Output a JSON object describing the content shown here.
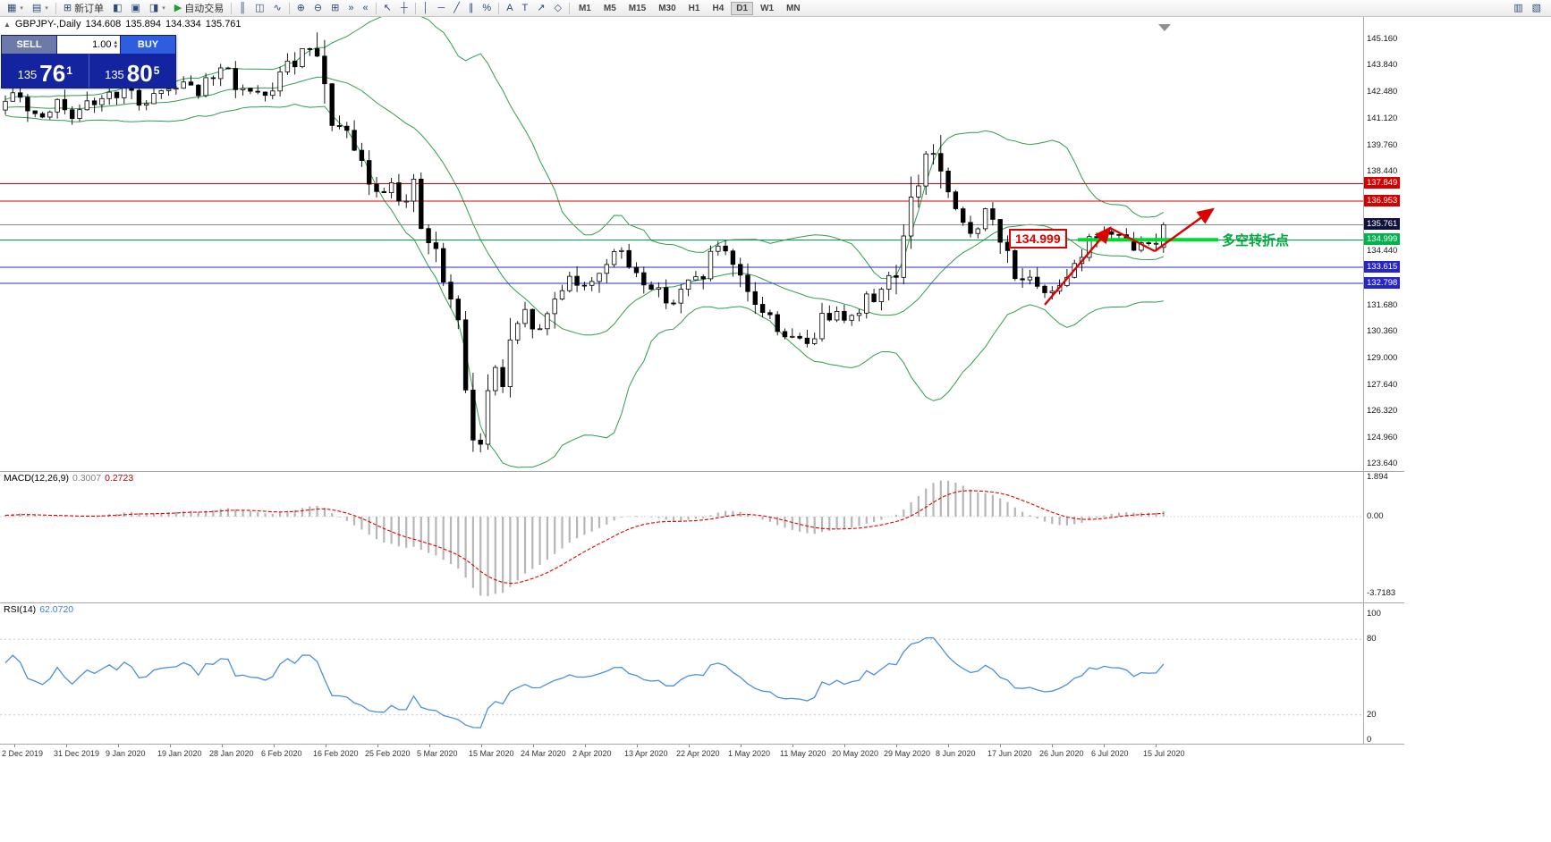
{
  "toolbar": {
    "groups": [
      {
        "items": [
          {
            "name": "new-chart-icon",
            "glyph": "▦",
            "caret": true
          },
          {
            "name": "profiles-icon",
            "glyph": "▤",
            "caret": true
          }
        ]
      },
      {
        "items": [
          {
            "name": "new-order-button",
            "glyph": "⊞",
            "label": "新订单"
          },
          {
            "name": "market-watch-icon",
            "glyph": "◧"
          },
          {
            "name": "data-window-icon",
            "glyph": "▣"
          },
          {
            "name": "navigator-icon",
            "glyph": "◨",
            "caret": true
          },
          {
            "name": "autotrading-button",
            "glyph": "▶",
            "label": "自动交易",
            "glyph_color": "#1f9d2c"
          }
        ]
      },
      {
        "items": [
          {
            "name": "bar-chart-icon",
            "glyph": "║"
          },
          {
            "name": "candlestick-chart-icon",
            "glyph": "◫"
          },
          {
            "name": "line-chart-icon",
            "glyph": "∿"
          }
        ]
      },
      {
        "items": [
          {
            "name": "zoom-in-icon",
            "glyph": "⊕"
          },
          {
            "name": "zoom-out-icon",
            "glyph": "⊖"
          },
          {
            "name": "tile-windows-icon",
            "glyph": "⊞"
          },
          {
            "name": "auto-scroll-icon",
            "glyph": "»"
          },
          {
            "name": "chart-shift-icon",
            "glyph": "«"
          }
        ]
      },
      {
        "items": [
          {
            "name": "cursor-icon",
            "glyph": "↖"
          },
          {
            "name": "crosshair-icon",
            "glyph": "┼"
          }
        ]
      },
      {
        "items": [
          {
            "name": "vertical-line-icon",
            "glyph": "│"
          },
          {
            "name": "horizontal-line-icon",
            "glyph": "─"
          },
          {
            "name": "trendline-icon",
            "glyph": "╱"
          },
          {
            "name": "equidistant-channel-icon",
            "glyph": "∥"
          },
          {
            "name": "fibonacci-icon",
            "glyph": "%"
          }
        ]
      },
      {
        "items": [
          {
            "name": "text-icon",
            "glyph": "A"
          },
          {
            "name": "text-label-icon",
            "glyph": "T"
          },
          {
            "name": "arrows-icon",
            "glyph": "↗"
          },
          {
            "name": "shapes-icon",
            "glyph": "◇"
          }
        ]
      }
    ],
    "timeframes": [
      "M1",
      "M5",
      "M15",
      "M30",
      "H1",
      "H4",
      "D1",
      "W1",
      "MN"
    ],
    "active_timeframe": "D1",
    "right_icons": [
      {
        "name": "chart-list-icon",
        "glyph": "▥"
      },
      {
        "name": "docking-icon",
        "glyph": "▧"
      }
    ]
  },
  "chart": {
    "ohlc_header": {
      "symbol": "GBPJPY-,Daily",
      "open": "134.608",
      "high": "135.894",
      "low": "134.334",
      "close": "135.761"
    },
    "trade_panel": {
      "sell_label": "SELL",
      "buy_label": "BUY",
      "volume": "1.00",
      "sell_price": {
        "big": "135",
        "pips": "76",
        "sup": "1"
      },
      "buy_price": {
        "big": "135",
        "pips": "80",
        "sup": "5"
      }
    },
    "annotations": {
      "price_callout": "134.999",
      "turning_point_label": "多空转折点"
    }
  },
  "chart_data": {
    "type": "candlestick",
    "symbol": "GBPJPY",
    "period": "Daily",
    "x_labels": [
      "2 Dec 2019",
      "31 Dec 2019",
      "9 Jan 2020",
      "19 Jan 2020",
      "28 Jan 2020",
      "6 Feb 2020",
      "16 Feb 2020",
      "25 Feb 2020",
      "5 Mar 2020",
      "15 Mar 2020",
      "24 Mar 2020",
      "2 Apr 2020",
      "13 Apr 2020",
      "22 Apr 2020",
      "1 May 2020",
      "11 May 2020",
      "20 May 2020",
      "29 May 2020",
      "8 Jun 2020",
      "17 Jun 2020",
      "26 Jun 2020",
      "6 Jul 2020",
      "15 Jul 2020"
    ],
    "y_axis": {
      "ticks": [
        145.16,
        143.84,
        142.48,
        141.12,
        139.76,
        138.44,
        134.44,
        131.68,
        130.36,
        129.0,
        127.64,
        126.32,
        124.96,
        123.64
      ],
      "visible_min": 123.44,
      "visible_max": 145.88
    },
    "price_lines": [
      {
        "value": 137.849,
        "color": "#d40000",
        "style": "solid",
        "label_bg": "#d40000",
        "role": "resistance"
      },
      {
        "value": 136.953,
        "color": "#d40000",
        "style": "solid",
        "label_bg": "#d40000",
        "role": "resistance"
      },
      {
        "value": 135.761,
        "color": "#8a8a8a",
        "style": "solid",
        "label_bg": "#10123c",
        "role": "last-price"
      },
      {
        "value": 134.999,
        "color": "#00a143",
        "style": "solid",
        "label_bg": "#00b44c",
        "role": "support",
        "thick_segment": true
      },
      {
        "value": 133.615,
        "color": "#2a2ad0",
        "style": "solid",
        "label_bg": "#2626c8",
        "role": "support"
      },
      {
        "value": 132.798,
        "color": "#2a2ad0",
        "style": "solid",
        "label_bg": "#2626c8",
        "role": "support"
      }
    ],
    "indicators": {
      "bollinger": {
        "name": "Bollinger Bands",
        "period": 20,
        "deviation": 2,
        "color": "#2e9e4e"
      },
      "macd": {
        "label": "MACD(12,26,9)",
        "values": [
          "0.3007",
          "0.2723"
        ],
        "axis": [
          "1.894",
          "0.00",
          "-3.7183"
        ],
        "histogram_color": "#b6b6b6",
        "signal_color": "#e00000"
      },
      "rsi": {
        "label": "RSI(14)",
        "value": "62.0720",
        "axis": [
          "100",
          "80",
          "20",
          "0"
        ],
        "levels": [
          80,
          20
        ],
        "line_color": "#4a90d9"
      }
    },
    "warmup_anchors": [
      [
        0,
        141.2
      ],
      [
        12,
        142.0
      ],
      [
        22,
        141.3
      ],
      [
        29,
        141.7
      ]
    ],
    "price_path_anchors": [
      [
        0,
        141.8
      ],
      [
        2,
        142.4
      ],
      [
        4,
        141.3
      ],
      [
        7,
        141.9
      ],
      [
        9,
        140.9
      ],
      [
        11,
        141.7
      ],
      [
        13,
        142.2
      ],
      [
        16,
        142.6
      ],
      [
        18,
        141.9
      ],
      [
        20,
        142.4
      ],
      [
        22,
        142.7
      ],
      [
        24,
        143.1
      ],
      [
        26,
        142.5
      ],
      [
        28,
        143.2
      ],
      [
        30,
        143.6
      ],
      [
        31,
        142.9
      ],
      [
        33,
        142.3
      ],
      [
        35,
        142.1
      ],
      [
        36,
        142.9
      ],
      [
        38,
        143.7
      ],
      [
        40,
        144.3
      ],
      [
        41,
        144.6
      ],
      [
        42,
        143.9
      ],
      [
        43,
        142.2
      ],
      [
        44,
        141.2
      ],
      [
        46,
        140.0
      ],
      [
        48,
        138.7
      ],
      [
        50,
        137.3
      ],
      [
        52,
        138.0
      ],
      [
        54,
        136.9
      ],
      [
        55,
        137.6
      ],
      [
        56,
        135.6
      ],
      [
        58,
        134.0
      ],
      [
        60,
        131.7
      ],
      [
        61,
        130.0
      ],
      [
        62,
        127.6
      ],
      [
        63,
        125.7
      ],
      [
        64,
        124.6
      ],
      [
        65,
        126.8
      ],
      [
        66,
        128.6
      ],
      [
        67,
        127.5
      ],
      [
        68,
        129.3
      ],
      [
        70,
        131.2
      ],
      [
        72,
        130.3
      ],
      [
        74,
        132.0
      ],
      [
        76,
        133.3
      ],
      [
        78,
        132.5
      ],
      [
        80,
        133.5
      ],
      [
        82,
        134.4
      ],
      [
        84,
        133.7
      ],
      [
        86,
        133.0
      ],
      [
        88,
        132.3
      ],
      [
        90,
        131.9
      ],
      [
        92,
        132.7
      ],
      [
        94,
        133.4
      ],
      [
        96,
        134.7
      ],
      [
        97,
        133.9
      ],
      [
        98,
        133.3
      ],
      [
        100,
        132.2
      ],
      [
        102,
        131.4
      ],
      [
        104,
        130.6
      ],
      [
        106,
        129.9
      ],
      [
        108,
        129.8
      ],
      [
        110,
        130.9
      ],
      [
        112,
        131.6
      ],
      [
        114,
        131.0
      ],
      [
        116,
        131.9
      ],
      [
        118,
        132.5
      ],
      [
        120,
        133.6
      ],
      [
        121,
        134.9
      ],
      [
        122,
        136.5
      ],
      [
        123,
        138.0
      ],
      [
        124,
        139.3
      ],
      [
        125,
        139.4
      ],
      [
        126,
        138.2
      ],
      [
        127,
        137.0
      ],
      [
        128,
        136.1
      ],
      [
        130,
        135.4
      ],
      [
        132,
        136.4
      ],
      [
        134,
        134.9
      ],
      [
        136,
        133.5
      ],
      [
        138,
        132.7
      ],
      [
        140,
        132.1
      ],
      [
        142,
        133.0
      ],
      [
        144,
        133.9
      ],
      [
        146,
        134.9
      ],
      [
        148,
        135.4
      ],
      [
        150,
        135.0
      ],
      [
        152,
        134.6
      ],
      [
        154,
        134.8
      ],
      [
        156,
        135.5
      ]
    ],
    "last_candle": {
      "open": 134.608,
      "high": 135.894,
      "low": 134.334,
      "close": 135.761
    }
  }
}
